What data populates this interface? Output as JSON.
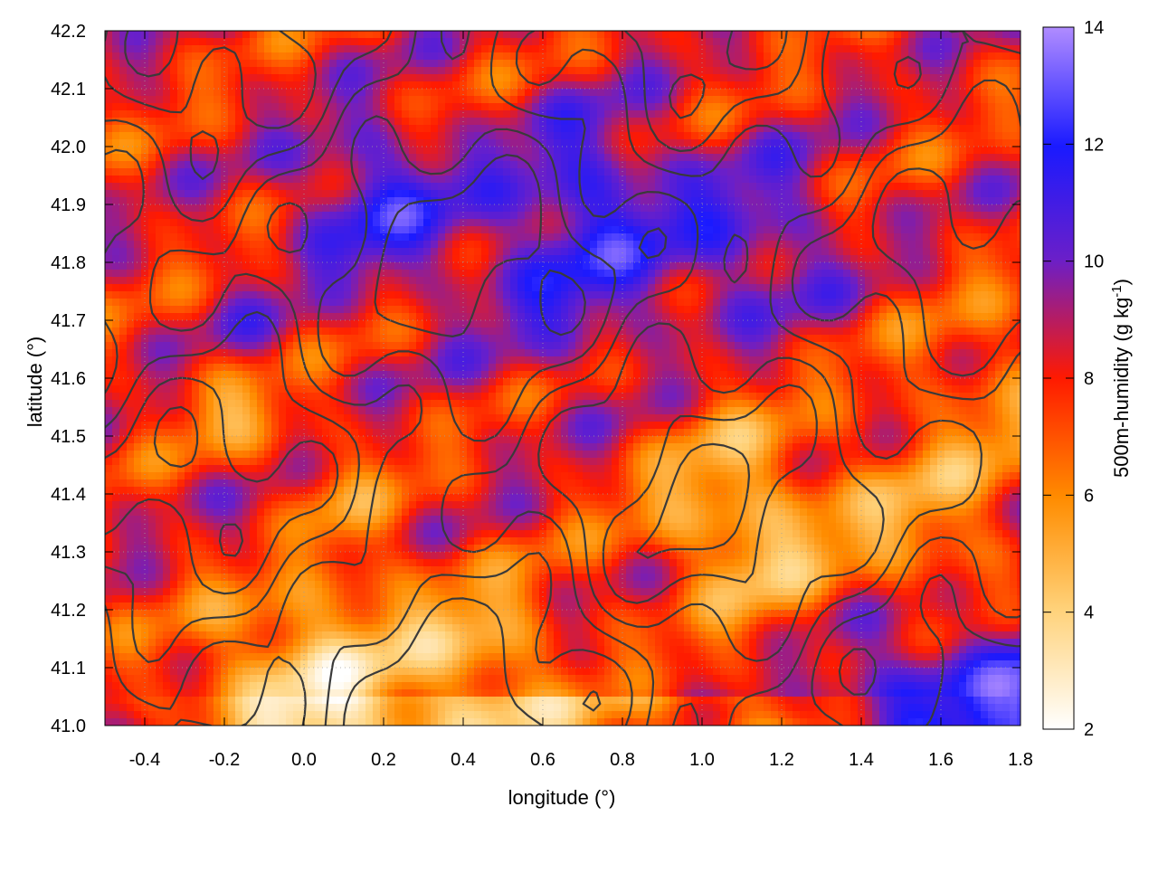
{
  "chart_data": {
    "type": "heatmap",
    "title": "",
    "xlabel": "longitude (°)",
    "ylabel": "latitude (°)",
    "colorbar_label": "500m-humidity (g kg-1)",
    "colorbar_label_main": "500m-humidity (g kg",
    "colorbar_label_sup": "-1",
    "colorbar_label_end": ")",
    "xlim": [
      -0.5,
      1.8
    ],
    "ylim": [
      41.0,
      42.2
    ],
    "clim": [
      2,
      14
    ],
    "x_ticks": [
      "-0.4",
      "-0.2",
      "0.0",
      "0.2",
      "0.4",
      "0.6",
      "0.8",
      "1.0",
      "1.2",
      "1.4",
      "1.6",
      "1.8"
    ],
    "y_ticks": [
      "41.0",
      "41.1",
      "41.2",
      "41.3",
      "41.4",
      "41.5",
      "41.6",
      "41.7",
      "41.8",
      "41.9",
      "42.0",
      "42.1",
      "42.2"
    ],
    "c_ticks": [
      "2",
      "4",
      "6",
      "8",
      "10",
      "12",
      "14"
    ],
    "colormap": [
      "#ffffff",
      "#ffd27a",
      "#ff8c00",
      "#ff1a00",
      "#6a1fc9",
      "#1a1aff",
      "#b08cff"
    ],
    "grid": true,
    "contours": true,
    "contour_color": "#3a3a3a",
    "field_description_regions": [
      {
        "lon": 0.35,
        "lat": 41.92,
        "value": 11.5
      },
      {
        "lon": 0.9,
        "lat": 41.85,
        "value": 11.0
      },
      {
        "lon": 0.1,
        "lat": 41.6,
        "value": 7.5
      },
      {
        "lon": 0.0,
        "lat": 41.15,
        "value": 3.0
      },
      {
        "lon": 0.8,
        "lat": 41.4,
        "value": 3.5
      },
      {
        "lon": 1.6,
        "lat": 41.05,
        "value": 13.0
      },
      {
        "lon": 1.4,
        "lat": 41.7,
        "value": 7.0
      }
    ]
  }
}
